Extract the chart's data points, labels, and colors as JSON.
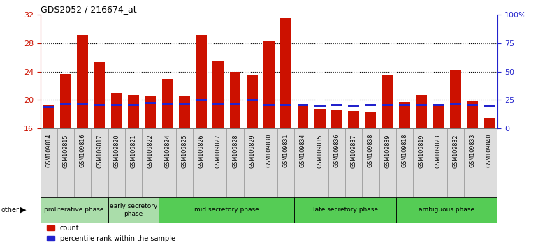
{
  "title": "GDS2052 / 216674_at",
  "samples": [
    "GSM109814",
    "GSM109815",
    "GSM109816",
    "GSM109817",
    "GSM109820",
    "GSM109821",
    "GSM109822",
    "GSM109824",
    "GSM109825",
    "GSM109826",
    "GSM109827",
    "GSM109828",
    "GSM109829",
    "GSM109830",
    "GSM109831",
    "GSM109834",
    "GSM109835",
    "GSM109836",
    "GSM109837",
    "GSM109838",
    "GSM109839",
    "GSM109818",
    "GSM109819",
    "GSM109823",
    "GSM109832",
    "GSM109833",
    "GSM109840"
  ],
  "count_values": [
    19.3,
    23.7,
    29.2,
    25.3,
    21.0,
    20.7,
    20.5,
    23.0,
    20.5,
    29.2,
    25.5,
    24.0,
    23.5,
    28.3,
    31.5,
    19.3,
    18.8,
    18.7,
    18.5,
    18.4,
    23.6,
    19.7,
    20.7,
    19.3,
    24.2,
    19.8,
    17.5
  ],
  "percentile_left_vals": [
    19.0,
    19.5,
    19.5,
    19.3,
    19.3,
    19.3,
    19.6,
    19.5,
    19.5,
    20.0,
    19.5,
    19.5,
    20.0,
    19.3,
    19.3,
    19.3,
    19.2,
    19.3,
    19.2,
    19.3,
    19.3,
    19.3,
    19.3,
    19.3,
    19.5,
    19.3,
    19.2
  ],
  "phase_info": [
    {
      "label": "proliferative phase",
      "start": 0,
      "end": 4,
      "color": "#aaddaa"
    },
    {
      "label": "early secretory\nphase",
      "start": 4,
      "end": 7,
      "color": "#aaddaa"
    },
    {
      "label": "mid secretory phase",
      "start": 7,
      "end": 15,
      "color": "#55cc55"
    },
    {
      "label": "late secretory phase",
      "start": 15,
      "end": 21,
      "color": "#55cc55"
    },
    {
      "label": "ambiguous phase",
      "start": 21,
      "end": 27,
      "color": "#55cc55"
    }
  ],
  "ylim_left": [
    16,
    32
  ],
  "ylim_right": [
    0,
    100
  ],
  "yticks_left": [
    16,
    20,
    24,
    28,
    32
  ],
  "yticks_right": [
    0,
    25,
    50,
    75,
    100
  ],
  "bar_color": "#cc1100",
  "percentile_color": "#2222cc",
  "axis_color_left": "#cc1100",
  "axis_color_right": "#2222cc"
}
